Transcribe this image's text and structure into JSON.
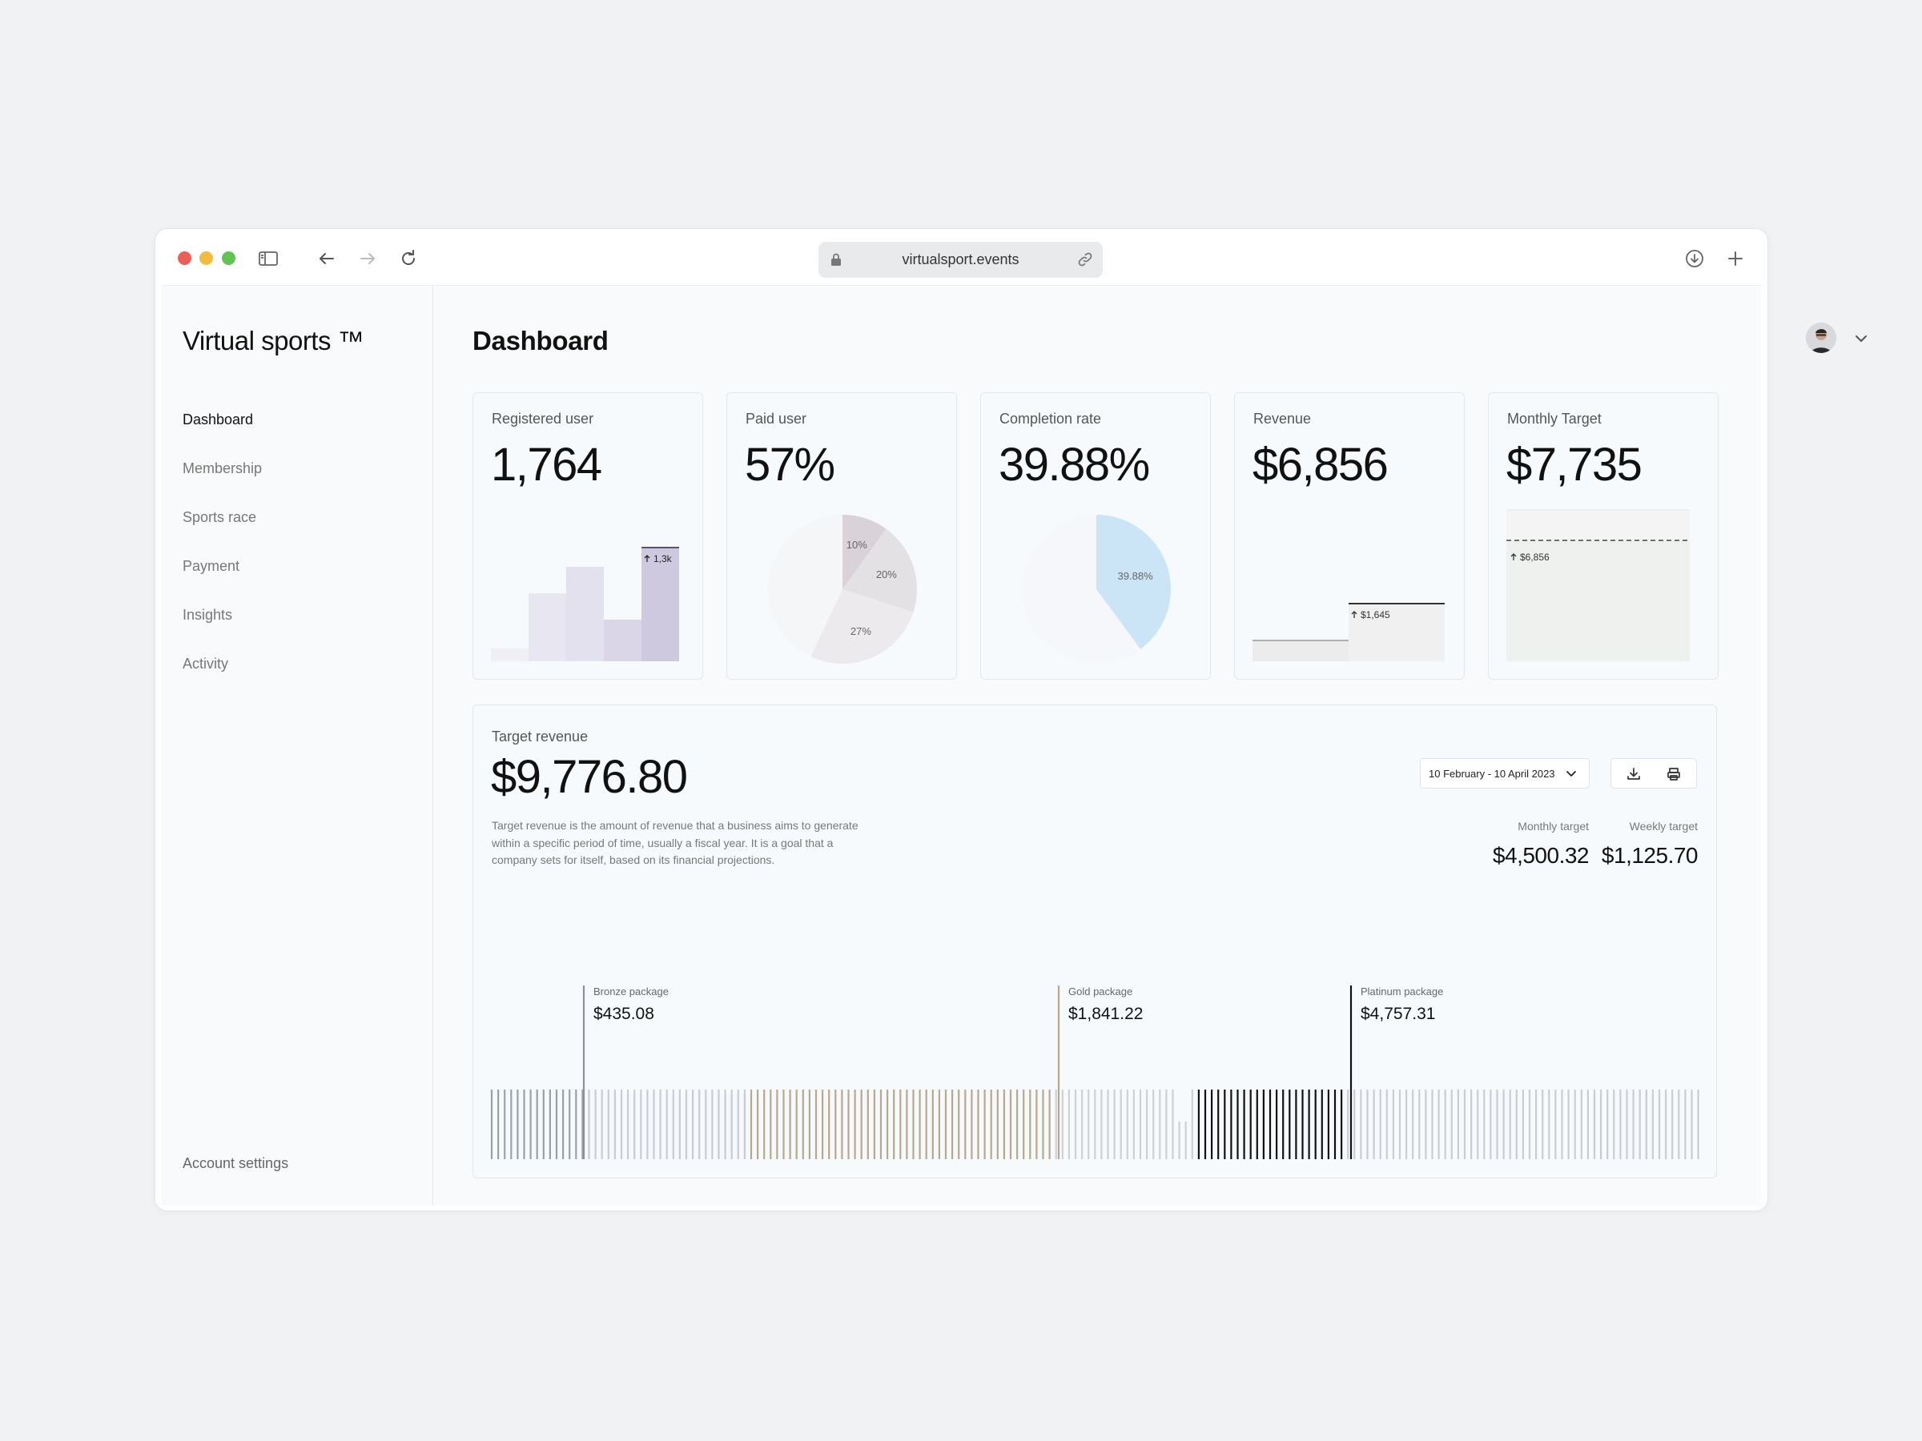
{
  "browser": {
    "url": "virtualsport.events"
  },
  "sidebar": {
    "brand": "Virtual sports ™",
    "items": [
      {
        "label": "Dashboard",
        "active": true
      },
      {
        "label": "Membership",
        "active": false
      },
      {
        "label": "Sports race",
        "active": false
      },
      {
        "label": "Payment",
        "active": false
      },
      {
        "label": "Insights",
        "active": false
      },
      {
        "label": "Activity",
        "active": false
      }
    ],
    "account": "Account settings"
  },
  "header": {
    "title": "Dashboard"
  },
  "cards": [
    {
      "label": "Registered user",
      "value": "1,764",
      "annotation": "1,3k"
    },
    {
      "label": "Paid user",
      "value": "57%",
      "slices": [
        {
          "label": "10%",
          "value": 10,
          "color": "#d9d2d8"
        },
        {
          "label": "20%",
          "value": 20,
          "color": "#e4e1e4"
        },
        {
          "label": "27%",
          "value": 27,
          "color": "#eceaec"
        }
      ]
    },
    {
      "label": "Completion rate",
      "value": "39.88%",
      "slice_label": "39.88%",
      "slice_value": 39.88,
      "color": "#cbe5f7"
    },
    {
      "label": "Revenue",
      "value": "$6,856",
      "annotation": "$1,645"
    },
    {
      "label": "Monthly Target",
      "value": "$7,735",
      "annotation": "$6,856"
    }
  ],
  "target_revenue": {
    "label": "Target revenue",
    "value": "$9,776.80",
    "description": "Target revenue is the amount of revenue that a business aims to generate within a specific period of time, usually a fiscal year. It is a goal that a company sets for itself, based on its financial projections.",
    "date_range": "10 February - 10 April 2023",
    "monthly_label": "Monthly target",
    "monthly_value": "$4,500.32",
    "weekly_label": "Weekly target",
    "weekly_value": "$1,125.70",
    "packages": [
      {
        "name": "Bronze package",
        "value": "$435.08"
      },
      {
        "name": "Gold package",
        "value": "$1,841.22"
      },
      {
        "name": "Platinum package",
        "value": "$4,757.31"
      }
    ]
  },
  "icons": {
    "sidebar_toggle": "sidebar-icon",
    "back": "arrow-left-icon",
    "forward": "arrow-right-icon",
    "reload": "reload-icon",
    "download": "download-icon",
    "new_tab": "plus-icon",
    "print": "printer-icon"
  }
}
